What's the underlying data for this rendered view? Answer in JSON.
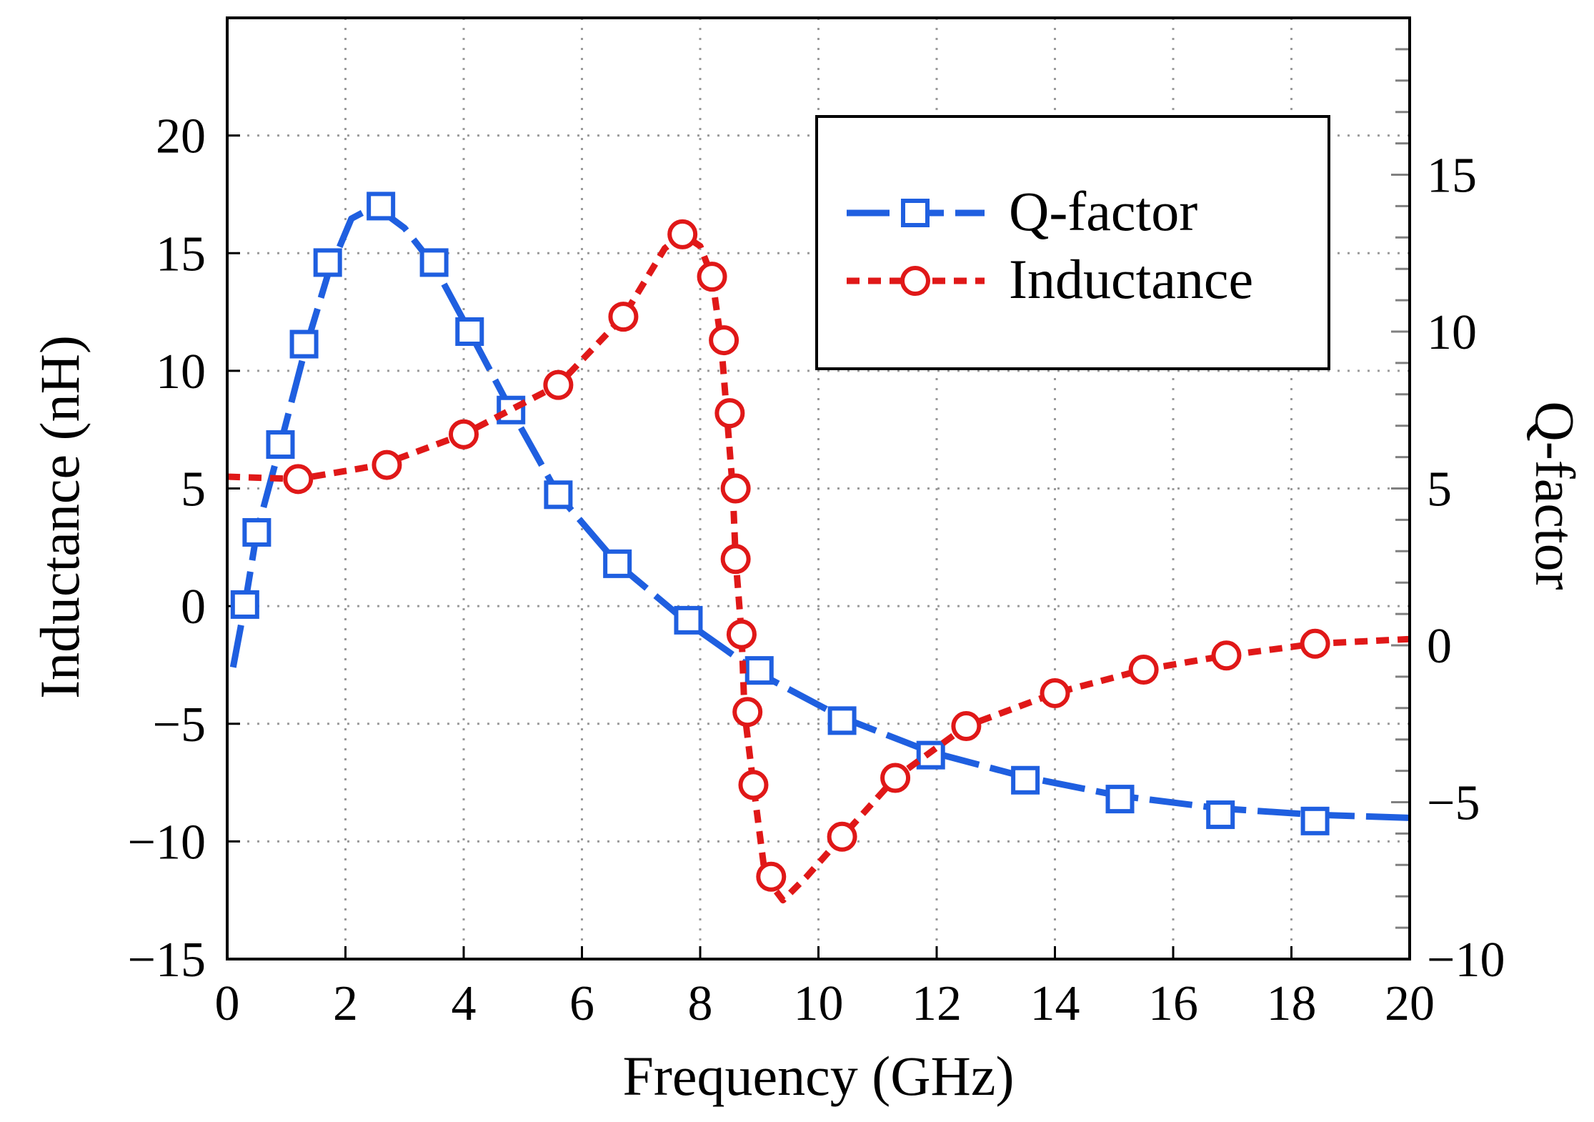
{
  "chart_data": {
    "type": "line",
    "xlabel": "Frequency (GHz)",
    "ylabel_left": "Inductance (nH)",
    "ylabel_right": "Q-factor",
    "xlim": [
      0,
      20
    ],
    "ylim_left": [
      -15,
      25
    ],
    "ylim_right": [
      -10,
      20
    ],
    "x_ticks": [
      0,
      2,
      4,
      6,
      8,
      10,
      12,
      14,
      16,
      18,
      20
    ],
    "y_left_ticks": [
      -15,
      -10,
      -5,
      0,
      5,
      10,
      15,
      20
    ],
    "y_right_ticks": [
      -10,
      -5,
      0,
      5,
      10,
      15
    ],
    "y_left_tick_labels": [
      "−15",
      "−10",
      "−5",
      "0",
      "5",
      "10",
      "15",
      "20"
    ],
    "y_right_tick_labels": [
      "−10",
      "−5",
      "0",
      "5",
      "10",
      "15"
    ],
    "grid": true,
    "legend_position": "top-right",
    "series": [
      {
        "name": "Q-factor",
        "axis": "right",
        "color": "#1f5fe0",
        "line_style": "long-dash",
        "marker": "square",
        "curve": [
          [
            0.1,
            -0.7
          ],
          [
            0.3,
            1.3
          ],
          [
            0.5,
            3.6
          ],
          [
            0.9,
            6.4
          ],
          [
            1.3,
            9.3
          ],
          [
            1.7,
            11.8
          ],
          [
            2.1,
            13.6
          ],
          [
            2.5,
            14.0
          ],
          [
            3.0,
            13.3
          ],
          [
            3.5,
            12.1
          ],
          [
            4.1,
            10.0
          ],
          [
            4.8,
            7.5
          ],
          [
            5.6,
            4.8
          ],
          [
            6.6,
            2.6
          ],
          [
            7.8,
            0.7
          ],
          [
            9.0,
            -0.9
          ],
          [
            10.4,
            -2.3
          ],
          [
            11.9,
            -3.4
          ],
          [
            13.5,
            -4.2
          ],
          [
            15.1,
            -4.8
          ],
          [
            16.8,
            -5.2
          ],
          [
            18.4,
            -5.4
          ],
          [
            20.0,
            -5.5
          ]
        ],
        "markers": [
          [
            0.3,
            1.3
          ],
          [
            0.5,
            3.6
          ],
          [
            0.9,
            6.4
          ],
          [
            1.3,
            9.6
          ],
          [
            1.7,
            12.2
          ],
          [
            2.6,
            14.0
          ],
          [
            3.5,
            12.2
          ],
          [
            4.1,
            10.0
          ],
          [
            4.8,
            7.5
          ],
          [
            5.6,
            4.8
          ],
          [
            6.6,
            2.6
          ],
          [
            7.8,
            0.8
          ],
          [
            9.0,
            -0.8
          ],
          [
            10.4,
            -2.4
          ],
          [
            11.9,
            -3.5
          ],
          [
            13.5,
            -4.3
          ],
          [
            15.1,
            -4.9
          ],
          [
            16.8,
            -5.4
          ],
          [
            18.4,
            -5.6
          ]
        ]
      },
      {
        "name": "Inductance",
        "axis": "left",
        "color": "#e01818",
        "line_style": "dotted",
        "marker": "circle",
        "curve": [
          [
            0.0,
            5.5
          ],
          [
            1.2,
            5.4
          ],
          [
            2.6,
            6.0
          ],
          [
            4.0,
            7.3
          ],
          [
            5.6,
            9.4
          ],
          [
            6.7,
            12.3
          ],
          [
            7.4,
            15.2
          ],
          [
            7.7,
            15.8
          ],
          [
            8.0,
            15.3
          ],
          [
            8.2,
            14.0
          ],
          [
            8.35,
            11.3
          ],
          [
            8.45,
            8.2
          ],
          [
            8.55,
            5.0
          ],
          [
            8.6,
            2.0
          ],
          [
            8.7,
            -1.2
          ],
          [
            8.75,
            -4.5
          ],
          [
            8.9,
            -7.6
          ],
          [
            9.1,
            -11.5
          ],
          [
            9.4,
            -12.5
          ],
          [
            9.8,
            -11.5
          ],
          [
            10.4,
            -9.8
          ],
          [
            11.3,
            -7.3
          ],
          [
            12.5,
            -5.1
          ],
          [
            14.0,
            -3.7
          ],
          [
            15.5,
            -2.7
          ],
          [
            16.9,
            -2.1
          ],
          [
            18.4,
            -1.6
          ],
          [
            20.0,
            -1.4
          ]
        ],
        "markers": [
          [
            1.2,
            5.4
          ],
          [
            2.7,
            6.0
          ],
          [
            4.0,
            7.3
          ],
          [
            5.6,
            9.4
          ],
          [
            6.7,
            12.3
          ],
          [
            7.7,
            15.8
          ],
          [
            8.2,
            14.0
          ],
          [
            8.4,
            11.3
          ],
          [
            8.5,
            8.2
          ],
          [
            8.6,
            5.0
          ],
          [
            8.6,
            2.0
          ],
          [
            8.7,
            -1.2
          ],
          [
            8.8,
            -4.5
          ],
          [
            8.9,
            -7.6
          ],
          [
            9.2,
            -11.5
          ],
          [
            10.4,
            -9.8
          ],
          [
            11.3,
            -7.3
          ],
          [
            12.5,
            -5.1
          ],
          [
            14.0,
            -3.7
          ],
          [
            15.5,
            -2.7
          ],
          [
            16.9,
            -2.1
          ],
          [
            18.4,
            -1.6
          ]
        ]
      }
    ]
  }
}
